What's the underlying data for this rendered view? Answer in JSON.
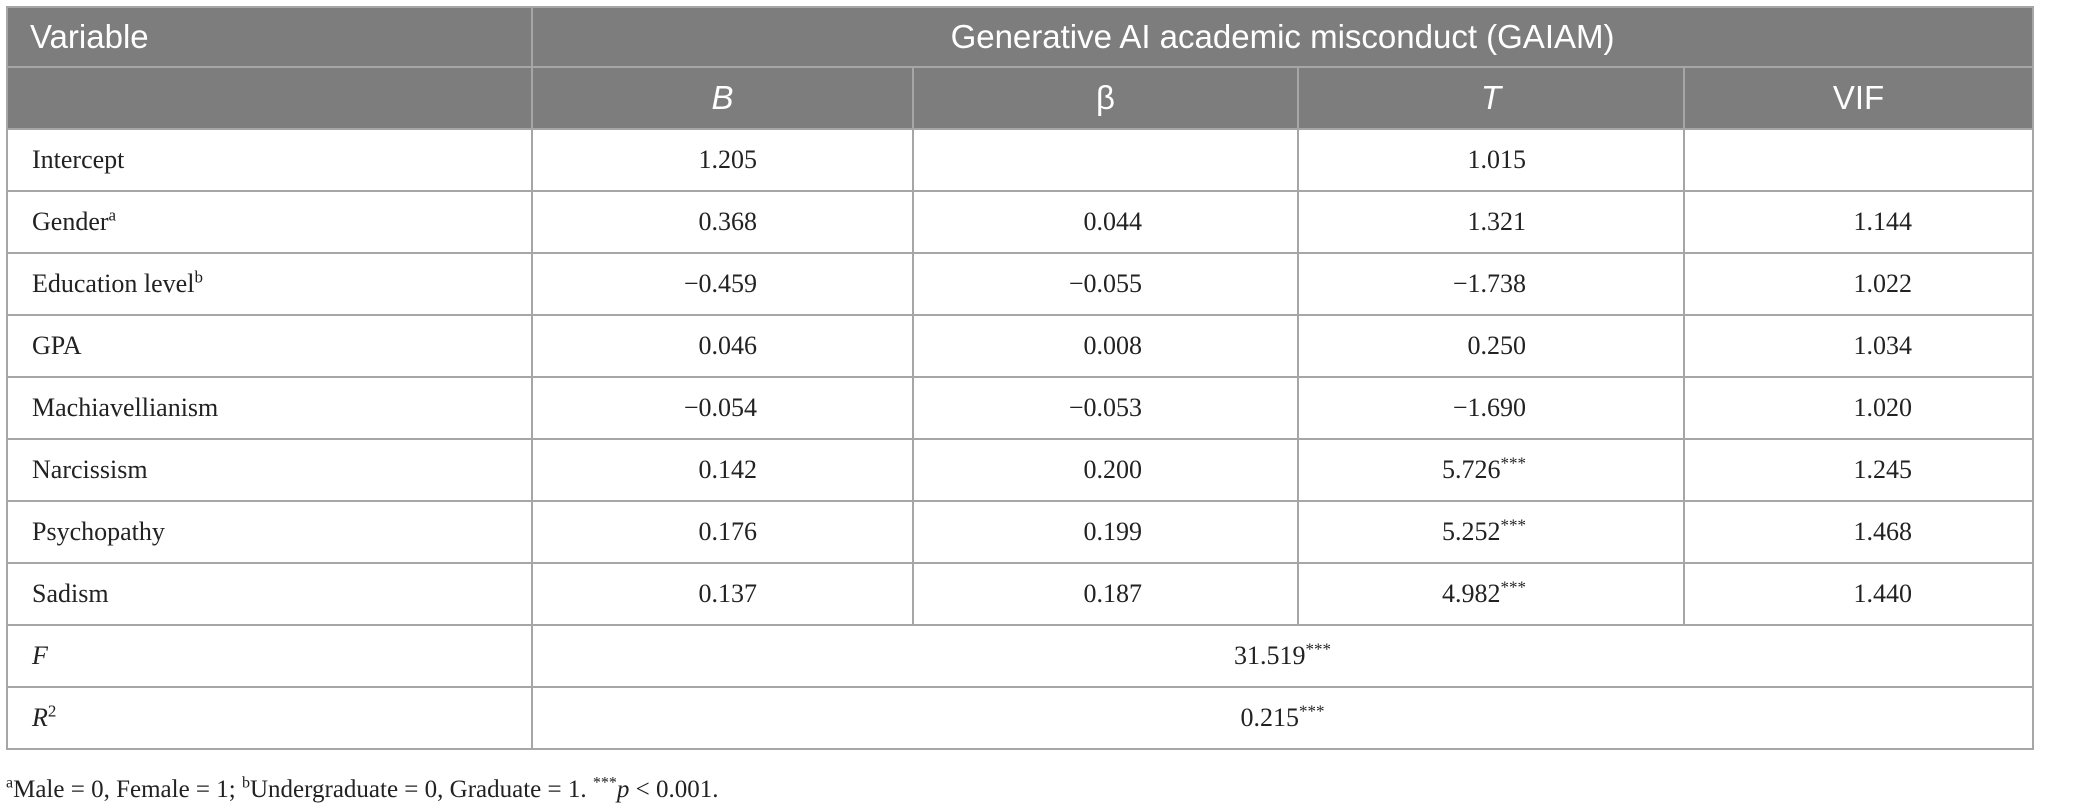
{
  "header": {
    "variable_label": "Variable",
    "group_label": "Generative AI academic misconduct (GAIAM)",
    "columns": [
      "B",
      "β",
      "T",
      "VIF"
    ]
  },
  "rows": [
    {
      "label": "Intercept",
      "label_sup": "",
      "B": "1.205",
      "beta": "",
      "T": "1.015",
      "T_sup": "",
      "VIF": ""
    },
    {
      "label": "Gender",
      "label_sup": "a",
      "B": "0.368",
      "beta": "0.044",
      "T": "1.321",
      "T_sup": "",
      "VIF": "1.144"
    },
    {
      "label": "Education level",
      "label_sup": "b",
      "B": "−0.459",
      "beta": "−0.055",
      "T": "−1.738",
      "T_sup": "",
      "VIF": "1.022"
    },
    {
      "label": "GPA",
      "label_sup": "",
      "B": "0.046",
      "beta": "0.008",
      "T": "0.250",
      "T_sup": "",
      "VIF": "1.034"
    },
    {
      "label": "Machiavellianism",
      "label_sup": "",
      "B": "−0.054",
      "beta": "−0.053",
      "T": "−1.690",
      "T_sup": "",
      "VIF": "1.020"
    },
    {
      "label": "Narcissism",
      "label_sup": "",
      "B": "0.142",
      "beta": "0.200",
      "T": "5.726",
      "T_sup": "***",
      "VIF": "1.245"
    },
    {
      "label": "Psychopathy",
      "label_sup": "",
      "B": "0.176",
      "beta": "0.199",
      "T": "5.252",
      "T_sup": "***",
      "VIF": "1.468"
    },
    {
      "label": "Sadism",
      "label_sup": "",
      "B": "0.137",
      "beta": "0.187",
      "T": "4.982",
      "T_sup": "***",
      "VIF": "1.440"
    }
  ],
  "summary": {
    "f_label": "F",
    "f_value": "31.519",
    "f_sup": "***",
    "r2_label": "R",
    "r2_label_sup": "2",
    "r2_value": "0.215",
    "r2_sup": "***"
  },
  "footnote": {
    "a_mark": "a",
    "a_text": "Male = 0, Female = 1; ",
    "b_mark": "b",
    "b_text": "Undergraduate = 0, Graduate = 1. ",
    "p_mark": "***",
    "p_letter": "p",
    "p_text": " < 0.001."
  }
}
